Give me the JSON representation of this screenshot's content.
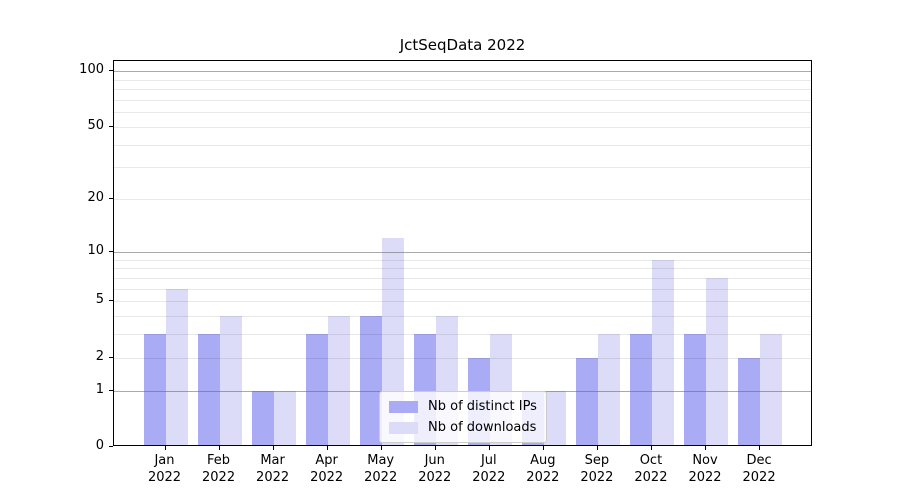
{
  "title": "JctSeqData 2022",
  "chart_data": {
    "type": "bar",
    "title": "JctSeqData 2022",
    "categories": [
      "Jan",
      "Feb",
      "Mar",
      "Apr",
      "May",
      "Jun",
      "Jul",
      "Aug",
      "Sep",
      "Oct",
      "Nov",
      "Dec"
    ],
    "year_label": "2022",
    "series": [
      {
        "name": "Nb of distinct IPs",
        "color": "#aaabf5",
        "values": [
          3,
          3,
          1,
          3,
          4,
          3,
          2,
          1,
          2,
          3,
          3,
          2
        ]
      },
      {
        "name": "Nb of downloads",
        "color": "#dcdcf8",
        "values": [
          6,
          4,
          1,
          4,
          12,
          4,
          3,
          1,
          3,
          9,
          7,
          3
        ]
      }
    ],
    "xlabel": "",
    "ylabel": "",
    "yscale": "log1p",
    "ylim": [
      0,
      113
    ],
    "yticks": [
      0,
      1,
      2,
      5,
      10,
      20,
      50,
      100
    ],
    "ytick_labels": [
      "0",
      "1",
      "2",
      "5",
      "10",
      "20",
      "50",
      "100"
    ],
    "major_gridlines": [
      1,
      10,
      100
    ],
    "minor_gridlines": [
      2,
      3,
      4,
      5,
      6,
      7,
      8,
      9,
      20,
      30,
      40,
      50,
      60,
      70,
      80,
      90
    ],
    "grid": true,
    "legend_position": "lower center"
  },
  "colors": {
    "series_dark": "#aaabf5",
    "series_light": "#dcdcf8",
    "major_grid": "#b4b4b4",
    "minor_grid": "#ebebeb",
    "axis": "#000000",
    "legend_border": "#cccccc"
  }
}
